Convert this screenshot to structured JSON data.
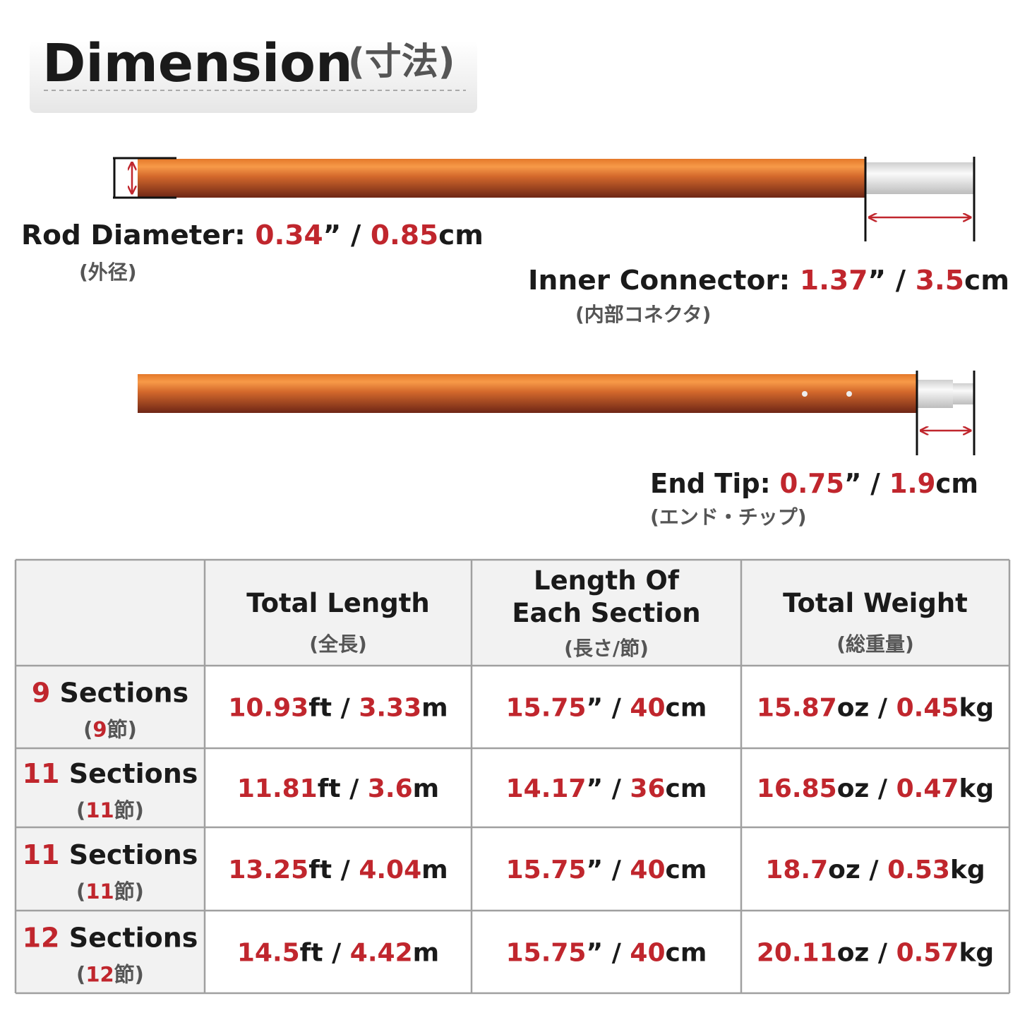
{
  "header": {
    "title": "Dimension",
    "title_sub": "(寸法)"
  },
  "separator": "/",
  "callouts": [
    {
      "label": "Rod Diameter:",
      "parts": [
        "0.34",
        "”",
        "0.85",
        "cm"
      ],
      "sub": "(外径)"
    },
    {
      "label": "Inner Connector:",
      "parts": [
        "1.37",
        "”",
        "3.5",
        "cm"
      ],
      "sub": "(内部コネクタ)"
    },
    {
      "label": "End Tip:",
      "parts": [
        "0.75",
        "”",
        "1.9",
        "cm"
      ],
      "sub": "(エンド・チップ)"
    }
  ],
  "table": {
    "columns": [
      {
        "lines": [
          "Total Length"
        ],
        "sub": "(全長)"
      },
      {
        "lines": [
          "Length Of",
          "Each Section"
        ],
        "sub": "(長さ/節)"
      },
      {
        "lines": [
          "Total Weight"
        ],
        "sub": "(総重量)"
      }
    ],
    "rows": [
      {
        "count": "9",
        "label": "Sections",
        "sub": [
          "(",
          "9",
          "節)"
        ],
        "cells": [
          [
            "10.93",
            "ft",
            "3.33",
            "m"
          ],
          [
            "15.75",
            "”",
            "40",
            "cm"
          ],
          [
            "15.87",
            "oz",
            "0.45",
            "kg"
          ]
        ]
      },
      {
        "count": "11",
        "label": "Sections",
        "sub": [
          "(",
          "11",
          "節)"
        ],
        "cells": [
          [
            "11.81",
            "ft",
            "3.6",
            "m"
          ],
          [
            "14.17",
            "”",
            "36",
            "cm"
          ],
          [
            "16.85",
            "oz",
            "0.47",
            "kg"
          ]
        ]
      },
      {
        "count": "11",
        "label": "Sections",
        "sub": [
          "(",
          "11",
          "節)"
        ],
        "cells": [
          [
            "13.25",
            "ft",
            "4.04",
            "m"
          ],
          [
            "15.75",
            "”",
            "40",
            "cm"
          ],
          [
            "18.7",
            "oz",
            "0.53",
            "kg"
          ]
        ]
      },
      {
        "count": "12",
        "label": "Sections",
        "sub": [
          "(",
          "12",
          "節)"
        ],
        "cells": [
          [
            "14.5",
            "ft",
            "4.42",
            "m"
          ],
          [
            "15.75",
            "”",
            "40",
            "cm"
          ],
          [
            "20.11",
            "oz",
            "0.57",
            "kg"
          ]
        ]
      }
    ]
  }
}
